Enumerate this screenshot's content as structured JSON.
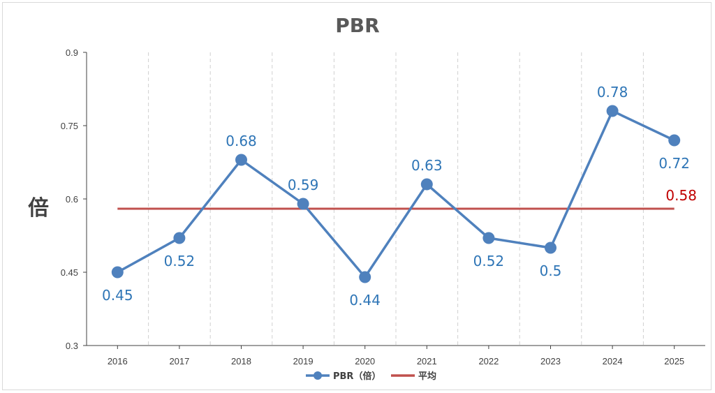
{
  "chart_data": {
    "type": "line",
    "title": "PBR",
    "ylabel": "倍",
    "xlabel": "",
    "categories": [
      "2016",
      "2017",
      "2018",
      "2019",
      "2020",
      "2021",
      "2022",
      "2023",
      "2024",
      "2025"
    ],
    "ylim": [
      0.3,
      0.9
    ],
    "yticks": [
      "0.3",
      "0.45",
      "0.6",
      "0.75",
      "0.9"
    ],
    "series": [
      {
        "name": "PBR（倍）",
        "values": [
          0.45,
          0.52,
          0.68,
          0.59,
          0.44,
          0.63,
          0.52,
          0.5,
          0.78,
          0.72
        ],
        "labels": [
          "0.45",
          "0.52",
          "0.68",
          "0.59",
          "0.44",
          "0.63",
          "0.52",
          "0.5",
          "0.78",
          "0.72"
        ],
        "color": "#4F81BD",
        "label_color": "#2E75B6"
      },
      {
        "name": "平均",
        "values": [
          0.58,
          0.58,
          0.58,
          0.58,
          0.58,
          0.58,
          0.58,
          0.58,
          0.58,
          0.58
        ],
        "label": "0.58",
        "color": "#C0504D",
        "label_color": "#C00000"
      }
    ],
    "grid": "vertical-dashed",
    "legend": "bottom"
  }
}
